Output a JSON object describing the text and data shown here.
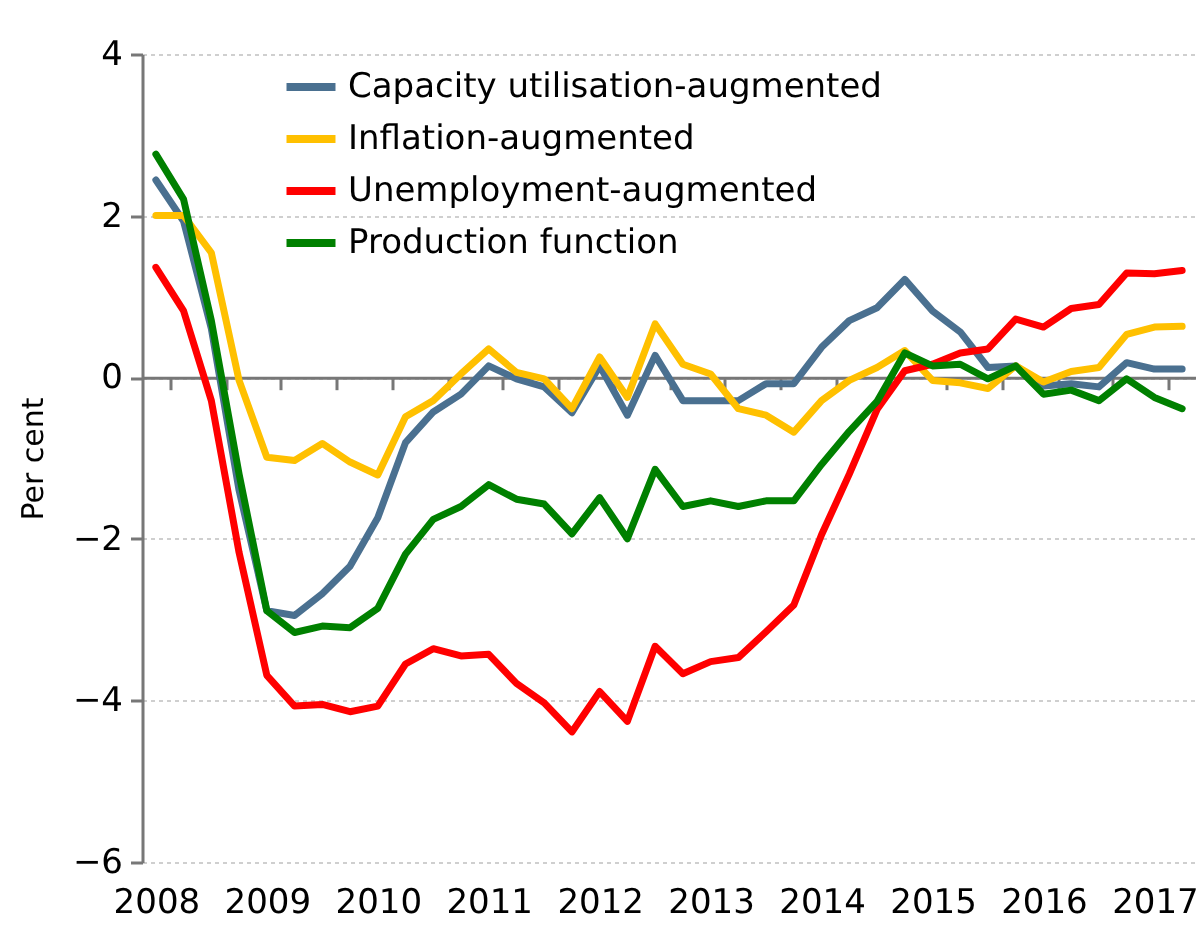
{
  "chart_data": {
    "type": "line",
    "ylabel": "Per cent",
    "categories": [
      "2008",
      null,
      null,
      null,
      "2009",
      null,
      null,
      null,
      "2010",
      null,
      null,
      null,
      "2011",
      null,
      null,
      null,
      "2012",
      null,
      null,
      null,
      "2013",
      null,
      null,
      null,
      "2014",
      null,
      null,
      null,
      "2015",
      null,
      null,
      null,
      "2016",
      null,
      null,
      null,
      "2017",
      null
    ],
    "series": [
      {
        "name": "Capacity utilisation-augmented",
        "color": "#4a7090",
        "values": [
          2.44,
          1.93,
          0.6,
          -1.4,
          -2.89,
          -2.95,
          -2.68,
          -2.34,
          -1.74,
          -0.81,
          -0.43,
          -0.21,
          0.14,
          -0.02,
          -0.12,
          -0.44,
          0.14,
          -0.47,
          0.27,
          -0.29,
          -0.29,
          -0.29,
          -0.08,
          -0.08,
          0.37,
          0.7,
          0.86,
          1.21,
          0.82,
          0.56,
          0.12,
          0.14,
          -0.11,
          -0.08,
          -0.12,
          0.18,
          0.1,
          0.1
        ]
      },
      {
        "name": "Inflation-augmented",
        "color": "#ffc000",
        "values": [
          2.0,
          2.0,
          1.54,
          -0.04,
          -0.99,
          -1.03,
          -0.82,
          -1.05,
          -1.21,
          -0.49,
          -0.29,
          0.04,
          0.35,
          0.06,
          -0.02,
          -0.39,
          0.25,
          -0.25,
          0.66,
          0.16,
          0.04,
          -0.39,
          -0.47,
          -0.68,
          -0.29,
          -0.04,
          0.12,
          0.33,
          -0.04,
          -0.07,
          -0.14,
          0.14,
          -0.06,
          0.07,
          0.12,
          0.53,
          0.62,
          0.63
        ]
      },
      {
        "name": "Unemployment-augmented",
        "color": "#ff0000",
        "values": [
          1.36,
          0.82,
          -0.29,
          -2.17,
          -3.69,
          -4.07,
          -4.05,
          -4.14,
          -4.07,
          -3.55,
          -3.36,
          -3.45,
          -3.43,
          -3.79,
          -4.03,
          -4.39,
          -3.89,
          -4.26,
          -3.33,
          -3.67,
          -3.52,
          -3.47,
          -3.15,
          -2.82,
          -1.95,
          -1.2,
          -0.4,
          0.08,
          0.16,
          0.3,
          0.35,
          0.72,
          0.62,
          0.85,
          0.9,
          1.29,
          1.28,
          1.32
        ]
      },
      {
        "name": "Production function",
        "color": "#008000",
        "values": [
          2.76,
          2.2,
          0.7,
          -1.2,
          -2.89,
          -3.16,
          -3.08,
          -3.1,
          -2.86,
          -2.19,
          -1.76,
          -1.6,
          -1.33,
          -1.51,
          -1.57,
          -1.94,
          -1.49,
          -2.0,
          -1.14,
          -1.6,
          -1.53,
          -1.6,
          -1.53,
          -1.53,
          -1.08,
          -0.67,
          -0.3,
          0.3,
          0.14,
          0.16,
          -0.02,
          0.14,
          -0.21,
          -0.16,
          -0.29,
          -0.02,
          -0.25,
          -0.39
        ]
      }
    ],
    "ylim": [
      -6,
      4
    ],
    "yticks": [
      -6,
      -4,
      -2,
      0,
      2,
      4
    ],
    "grid": "y",
    "legend": "top",
    "marker": "none",
    "line_style": "solid"
  }
}
